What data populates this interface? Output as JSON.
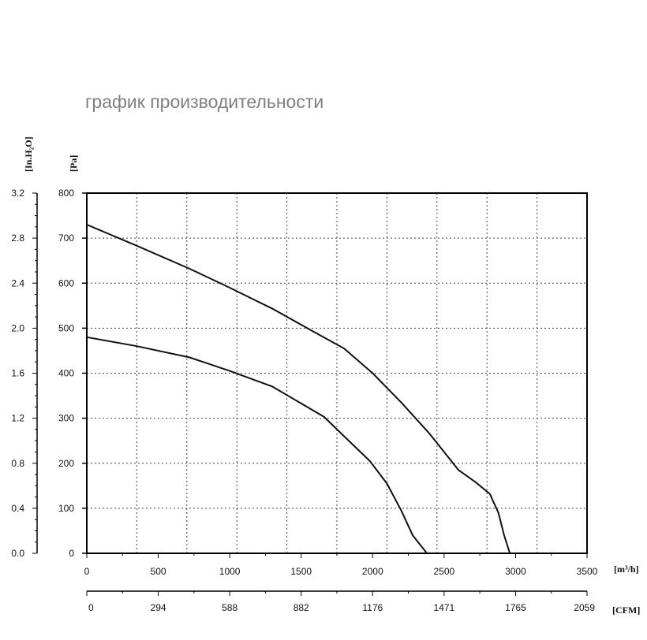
{
  "page": {
    "title": "график производительности"
  },
  "chart_data": {
    "type": "line",
    "title": "график производительности",
    "x_axis": {
      "unit": "[m³/h]",
      "ticks": [
        0,
        500,
        1000,
        1500,
        2000,
        2500,
        3000,
        3500
      ],
      "range": [
        0,
        3500
      ]
    },
    "x2_axis": {
      "unit": "[CFM]",
      "ticks": [
        "0",
        "294",
        "588",
        "882",
        "1176",
        "1471",
        "1765",
        "2059"
      ]
    },
    "y_axis": {
      "unit": "[Pa]",
      "ticks": [
        0,
        100,
        200,
        300,
        400,
        500,
        600,
        700,
        800
      ],
      "range": [
        0,
        800
      ]
    },
    "y2_axis": {
      "unit": "[In.H₂O]",
      "ticks": [
        "0.0",
        "0.4",
        "0.8",
        "1.2",
        "1.6",
        "2.0",
        "2.4",
        "2.8",
        "3.2"
      ]
    },
    "grid": true,
    "series": [
      {
        "values": [
          [
            0,
            730
          ],
          [
            350,
            683
          ],
          [
            720,
            632
          ],
          [
            1000,
            590
          ],
          [
            1300,
            543
          ],
          [
            1600,
            490
          ],
          [
            1800,
            455
          ],
          [
            2000,
            400
          ],
          [
            2200,
            335
          ],
          [
            2400,
            265
          ],
          [
            2600,
            185
          ],
          [
            2720,
            158
          ],
          [
            2820,
            132
          ],
          [
            2880,
            90
          ],
          [
            2920,
            40
          ],
          [
            2960,
            0
          ]
        ]
      },
      {
        "values": [
          [
            0,
            480
          ],
          [
            350,
            460
          ],
          [
            720,
            435
          ],
          [
            1000,
            405
          ],
          [
            1300,
            370
          ],
          [
            1660,
            303
          ],
          [
            1800,
            260
          ],
          [
            1980,
            205
          ],
          [
            2100,
            155
          ],
          [
            2200,
            95
          ],
          [
            2280,
            40
          ],
          [
            2380,
            0
          ]
        ]
      }
    ]
  }
}
